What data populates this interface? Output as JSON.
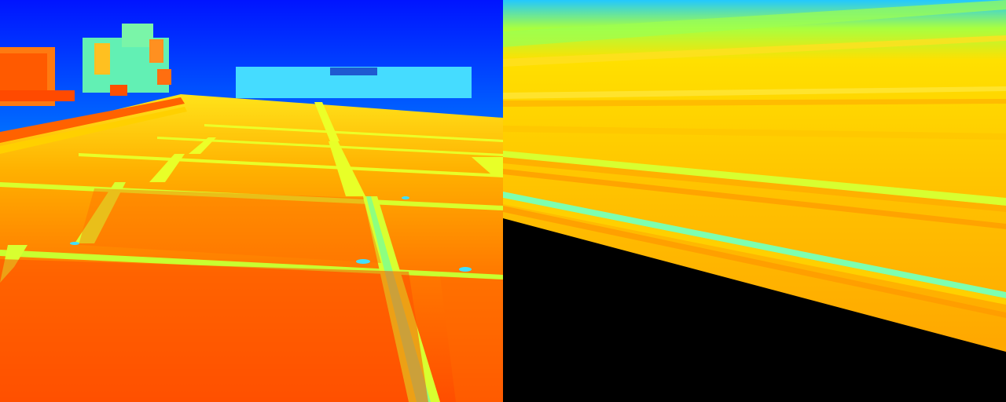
{
  "panels": [
    {
      "icon": "thermal-solar-panel-rooftop-image"
    },
    {
      "icon": "thermal-line-scan-stretched-image"
    }
  ],
  "palette": {
    "sky_top": "#0014ff",
    "sky_mid": "#00a0ff",
    "sky_low": "#3cd6ff",
    "hot": "#ff5a00",
    "warm": "#ffa500",
    "mid": "#ffd200",
    "cool": "#e8ff2a",
    "cyan": "#7dffb0",
    "black": "#000000"
  }
}
